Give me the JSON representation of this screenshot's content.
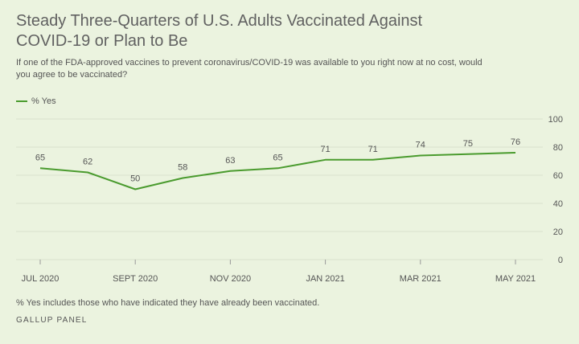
{
  "header": {
    "title": "Steady Three-Quarters of U.S. Adults Vaccinated Against COVID-19 or Plan to Be",
    "subtitle": "If one of the FDA-approved vaccines to prevent coronavirus/COVID-19 was available to you right now at no cost, would you agree to be vaccinated?"
  },
  "legend": {
    "label": "% Yes"
  },
  "footer": {
    "note": "% Yes includes those who have indicated they have already been vaccinated.",
    "source": "GALLUP PANEL"
  },
  "colors": {
    "series": "#4a9b2e",
    "background": "#ebf3df",
    "grid": "#d8e0cc"
  },
  "chart_data": {
    "type": "line",
    "title": "Steady Three-Quarters of U.S. Adults Vaccinated Against COVID-19 or Plan to Be",
    "x": [
      "2020-07",
      "2020-08",
      "2020-09",
      "2020-10",
      "2020-11",
      "2020-12",
      "2021-01",
      "2021-02",
      "2021-03",
      "2021-04",
      "2021-05"
    ],
    "x_tick_labels": [
      "JUL 2020",
      "SEPT 2020",
      "NOV 2020",
      "JAN 2021",
      "MAR 2021",
      "MAY 2021"
    ],
    "x_tick_positions": [
      "2020-07",
      "2020-09",
      "2020-11",
      "2021-01",
      "2021-03",
      "2021-05"
    ],
    "series": [
      {
        "name": "% Yes",
        "values": [
          65,
          62,
          50,
          58,
          63,
          65,
          71,
          71,
          74,
          75,
          76
        ],
        "data_labels": [
          "65",
          "62",
          "50",
          "58",
          "63",
          "65",
          "71",
          "71",
          "74",
          "75",
          "76"
        ]
      }
    ],
    "ylim": [
      0,
      100
    ],
    "y_ticks": [
      0,
      20,
      40,
      60,
      80,
      100
    ],
    "y_tick_labels": [
      "0",
      "20",
      "40",
      "60",
      "80",
      "100"
    ],
    "y_axis_position": "right",
    "grid": "horizontal",
    "legend_position": "top-left"
  }
}
